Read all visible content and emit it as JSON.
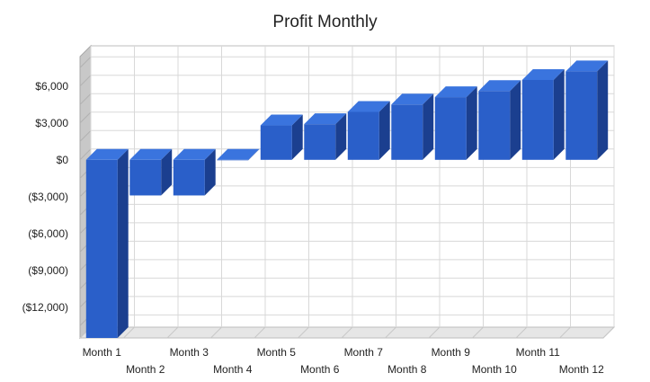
{
  "chart_data": {
    "type": "bar",
    "title": "Profit Monthly",
    "xlabel": "",
    "ylabel": "",
    "categories": [
      "Month 1",
      "Month 2",
      "Month 3",
      "Month 4",
      "Month 5",
      "Month 6",
      "Month 7",
      "Month 8",
      "Month 9",
      "Month 10",
      "Month 11",
      "Month 12"
    ],
    "values": [
      -14500,
      -2900,
      -2900,
      0,
      2800,
      2900,
      3900,
      4500,
      5100,
      5600,
      6500,
      7200
    ],
    "y_ticks": [
      6000,
      3000,
      0,
      -3000,
      -6000,
      -9000,
      -12000
    ],
    "y_tick_labels": [
      "$6,000",
      "$3,000",
      "$0",
      "($3,000)",
      "($6,000)",
      "($9,000)",
      "($12,000)"
    ],
    "ylim": [
      -14500,
      8400
    ],
    "grid": true,
    "legend": "none",
    "bar_color": "#2a5fc9",
    "bar_side_color": "#1b3f8f",
    "bar_top_color": "#3a74de",
    "wall_color": "#c8c8c8",
    "gridline_color": "#d8d8d8"
  }
}
